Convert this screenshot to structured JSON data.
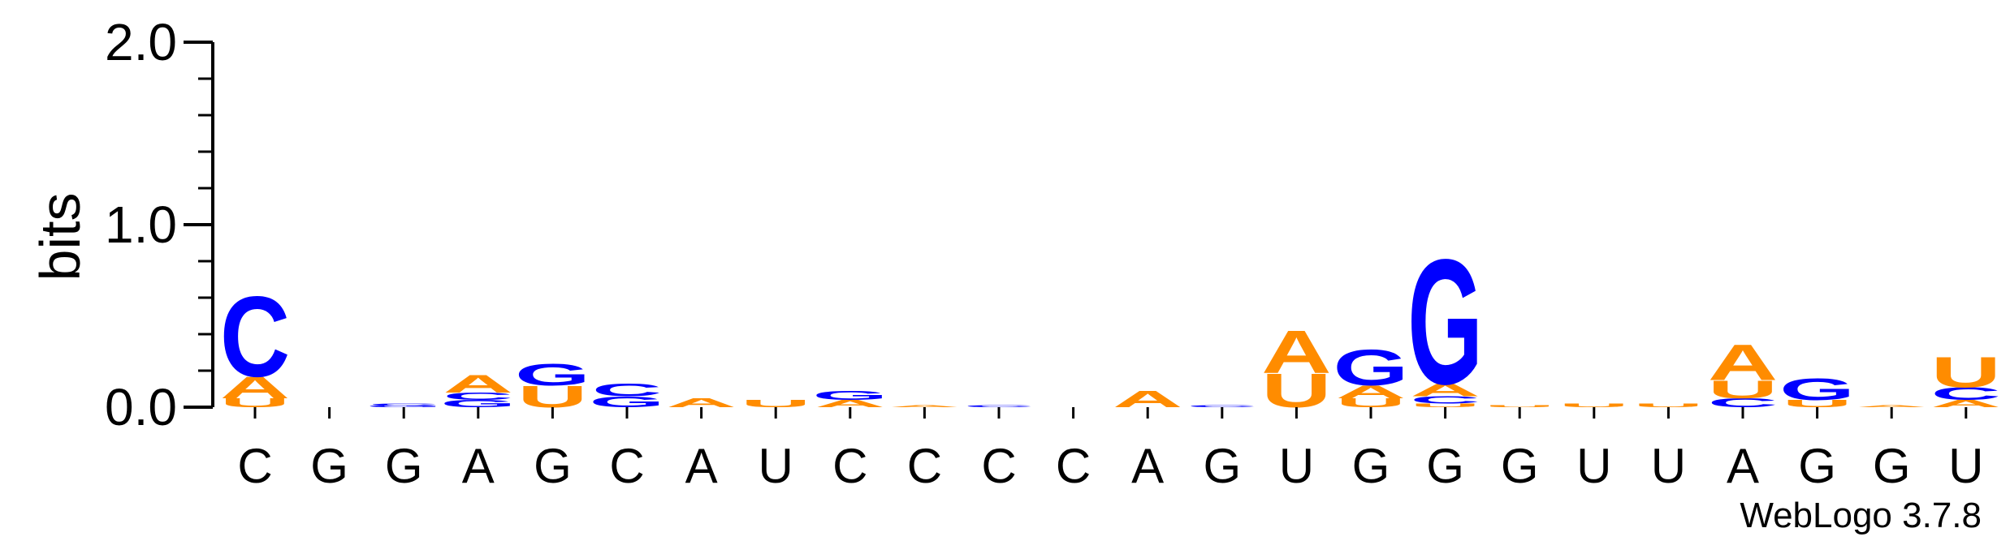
{
  "chart_data": {
    "type": "sequence-logo",
    "ylabel": "bits",
    "ylim": [
      0,
      2.0
    ],
    "yticks": [
      "0.0",
      "1.0",
      "2.0"
    ],
    "colors": {
      "A": "#ff8c00",
      "U": "#ff8c00",
      "G": "#0000ff",
      "C": "#0000ff"
    },
    "positions": [
      {
        "label": "C",
        "stack": [
          {
            "b": "U",
            "h": 0.05
          },
          {
            "b": "A",
            "h": 0.12
          },
          {
            "b": "C",
            "h": 0.45
          }
        ]
      },
      {
        "label": "G",
        "stack": []
      },
      {
        "label": "G",
        "stack": [
          {
            "b": "G",
            "h": 0.01
          },
          {
            "b": "C",
            "h": 0.01
          }
        ]
      },
      {
        "label": "A",
        "stack": [
          {
            "b": "G",
            "h": 0.04
          },
          {
            "b": "C",
            "h": 0.04
          },
          {
            "b": "A",
            "h": 0.1
          }
        ]
      },
      {
        "label": "G",
        "stack": [
          {
            "b": "U",
            "h": 0.12
          },
          {
            "b": "G",
            "h": 0.12
          }
        ]
      },
      {
        "label": "C",
        "stack": [
          {
            "b": "G",
            "h": 0.06
          },
          {
            "b": "C",
            "h": 0.07
          }
        ]
      },
      {
        "label": "A",
        "stack": [
          {
            "b": "A",
            "h": 0.05
          }
        ]
      },
      {
        "label": "U",
        "stack": [
          {
            "b": "U",
            "h": 0.04
          }
        ]
      },
      {
        "label": "C",
        "stack": [
          {
            "b": "A",
            "h": 0.04
          },
          {
            "b": "G",
            "h": 0.05
          }
        ]
      },
      {
        "label": "C",
        "stack": [
          {
            "b": "A",
            "h": 0.01
          }
        ]
      },
      {
        "label": "C",
        "stack": [
          {
            "b": "C",
            "h": 0.01
          }
        ]
      },
      {
        "label": "C",
        "stack": []
      },
      {
        "label": "A",
        "stack": [
          {
            "b": "A",
            "h": 0.09
          }
        ]
      },
      {
        "label": "G",
        "stack": [
          {
            "b": "C",
            "h": 0.01
          }
        ]
      },
      {
        "label": "U",
        "stack": [
          {
            "b": "U",
            "h": 0.19
          },
          {
            "b": "A",
            "h": 0.24
          }
        ]
      },
      {
        "label": "G",
        "stack": [
          {
            "b": "U",
            "h": 0.05
          },
          {
            "b": "A",
            "h": 0.07
          },
          {
            "b": "G",
            "h": 0.2
          }
        ]
      },
      {
        "label": "G",
        "stack": [
          {
            "b": "U",
            "h": 0.02
          },
          {
            "b": "C",
            "h": 0.04
          },
          {
            "b": "A",
            "h": 0.07
          },
          {
            "b": "G",
            "h": 0.7
          }
        ]
      },
      {
        "label": "G",
        "stack": [
          {
            "b": "U",
            "h": 0.01
          }
        ]
      },
      {
        "label": "U",
        "stack": [
          {
            "b": "U",
            "h": 0.02
          }
        ]
      },
      {
        "label": "U",
        "stack": [
          {
            "b": "U",
            "h": 0.02
          }
        ]
      },
      {
        "label": "A",
        "stack": [
          {
            "b": "C",
            "h": 0.05
          },
          {
            "b": "U",
            "h": 0.1
          },
          {
            "b": "A",
            "h": 0.2
          }
        ]
      },
      {
        "label": "G",
        "stack": [
          {
            "b": "U",
            "h": 0.04
          },
          {
            "b": "G",
            "h": 0.12
          }
        ]
      },
      {
        "label": "G",
        "stack": [
          {
            "b": "A",
            "h": 0.01
          }
        ]
      },
      {
        "label": "U",
        "stack": [
          {
            "b": "A",
            "h": 0.04
          },
          {
            "b": "C",
            "h": 0.07
          },
          {
            "b": "U",
            "h": 0.17
          }
        ]
      }
    ],
    "credit": "WebLogo 3.7.8"
  }
}
